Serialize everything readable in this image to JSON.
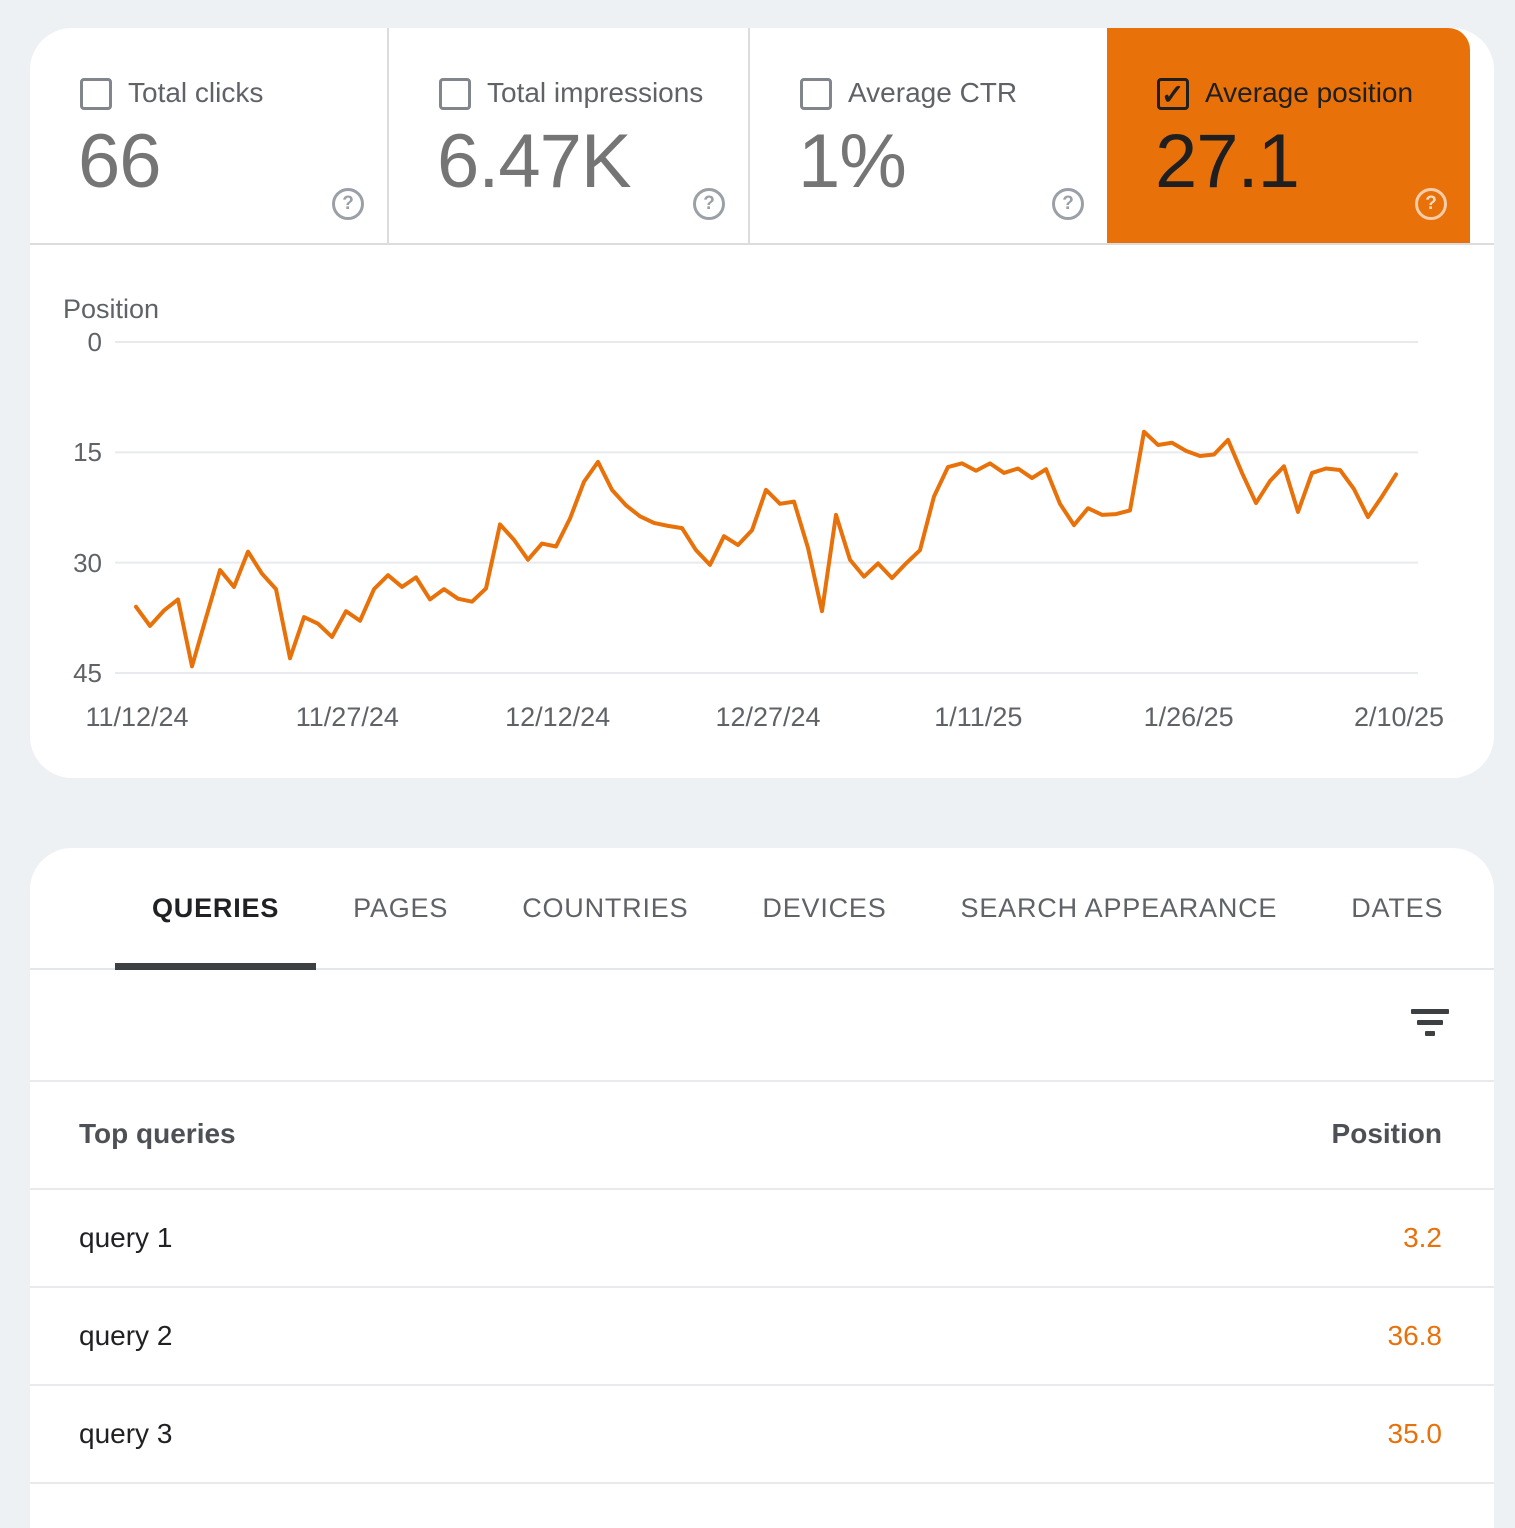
{
  "metrics": {
    "selected_card_color": "#E8710A",
    "cards": [
      {
        "label": "Total clicks",
        "value": "66",
        "checked": false
      },
      {
        "label": "Total impressions",
        "value": "6.47K",
        "checked": false
      },
      {
        "label": "Average CTR",
        "value": "1%",
        "checked": false
      },
      {
        "label": "Average position",
        "value": "27.1",
        "checked": true
      }
    ]
  },
  "chart_data": {
    "type": "line",
    "title": "Position",
    "ylabel": "Position",
    "y_axis_inverted": true,
    "y_ticks": [
      0,
      15,
      30,
      45
    ],
    "ylim": [
      0,
      45
    ],
    "grid": true,
    "legend": "none",
    "x_tick_labels": [
      "11/12/24",
      "11/27/24",
      "12/12/24",
      "12/27/24",
      "1/11/25",
      "1/26/25",
      "2/10/25"
    ],
    "x_frequency": "daily",
    "series": [
      {
        "name": "Average position",
        "color": "#E8710A",
        "start_date": "11/12/24",
        "values": [
          36.0,
          38.6,
          36.5,
          35.0,
          44.1,
          37.5,
          31.0,
          33.3,
          28.5,
          31.5,
          33.6,
          43.0,
          37.4,
          38.3,
          40.1,
          36.6,
          37.9,
          33.6,
          31.7,
          33.3,
          32.0,
          35.0,
          33.6,
          34.9,
          35.3,
          33.5,
          24.8,
          26.9,
          29.6,
          27.4,
          27.8,
          24.0,
          19.0,
          16.3,
          20.1,
          22.2,
          23.7,
          24.6,
          25.0,
          25.3,
          28.3,
          30.3,
          26.4,
          27.6,
          25.6,
          20.1,
          22.0,
          21.7,
          28.0,
          36.6,
          23.5,
          29.6,
          31.9,
          30.1,
          32.1,
          30.1,
          28.3,
          21.0,
          17.0,
          16.5,
          17.5,
          16.5,
          17.8,
          17.2,
          18.5,
          17.3,
          22.0,
          24.9,
          22.6,
          23.5,
          23.4,
          22.9,
          12.2,
          14.0,
          13.7,
          14.8,
          15.5,
          15.3,
          13.3,
          17.8,
          21.9,
          18.9,
          16.9,
          23.1,
          17.8,
          17.2,
          17.4,
          20.0,
          23.8,
          21.0,
          18.0
        ]
      }
    ]
  },
  "tabs": {
    "items": [
      {
        "label": "QUERIES",
        "active": true
      },
      {
        "label": "PAGES",
        "active": false
      },
      {
        "label": "COUNTRIES",
        "active": false
      },
      {
        "label": "DEVICES",
        "active": false
      },
      {
        "label": "SEARCH APPEARANCE",
        "active": false
      },
      {
        "label": "DATES",
        "active": false
      }
    ]
  },
  "table": {
    "header": {
      "queries": "Top queries",
      "position": "Position"
    },
    "value_color": "#E8710A",
    "rows": [
      {
        "query": "query 1",
        "position": "3.2"
      },
      {
        "query": "query 2",
        "position": "36.8"
      },
      {
        "query": "query 3",
        "position": "35.0"
      }
    ]
  }
}
